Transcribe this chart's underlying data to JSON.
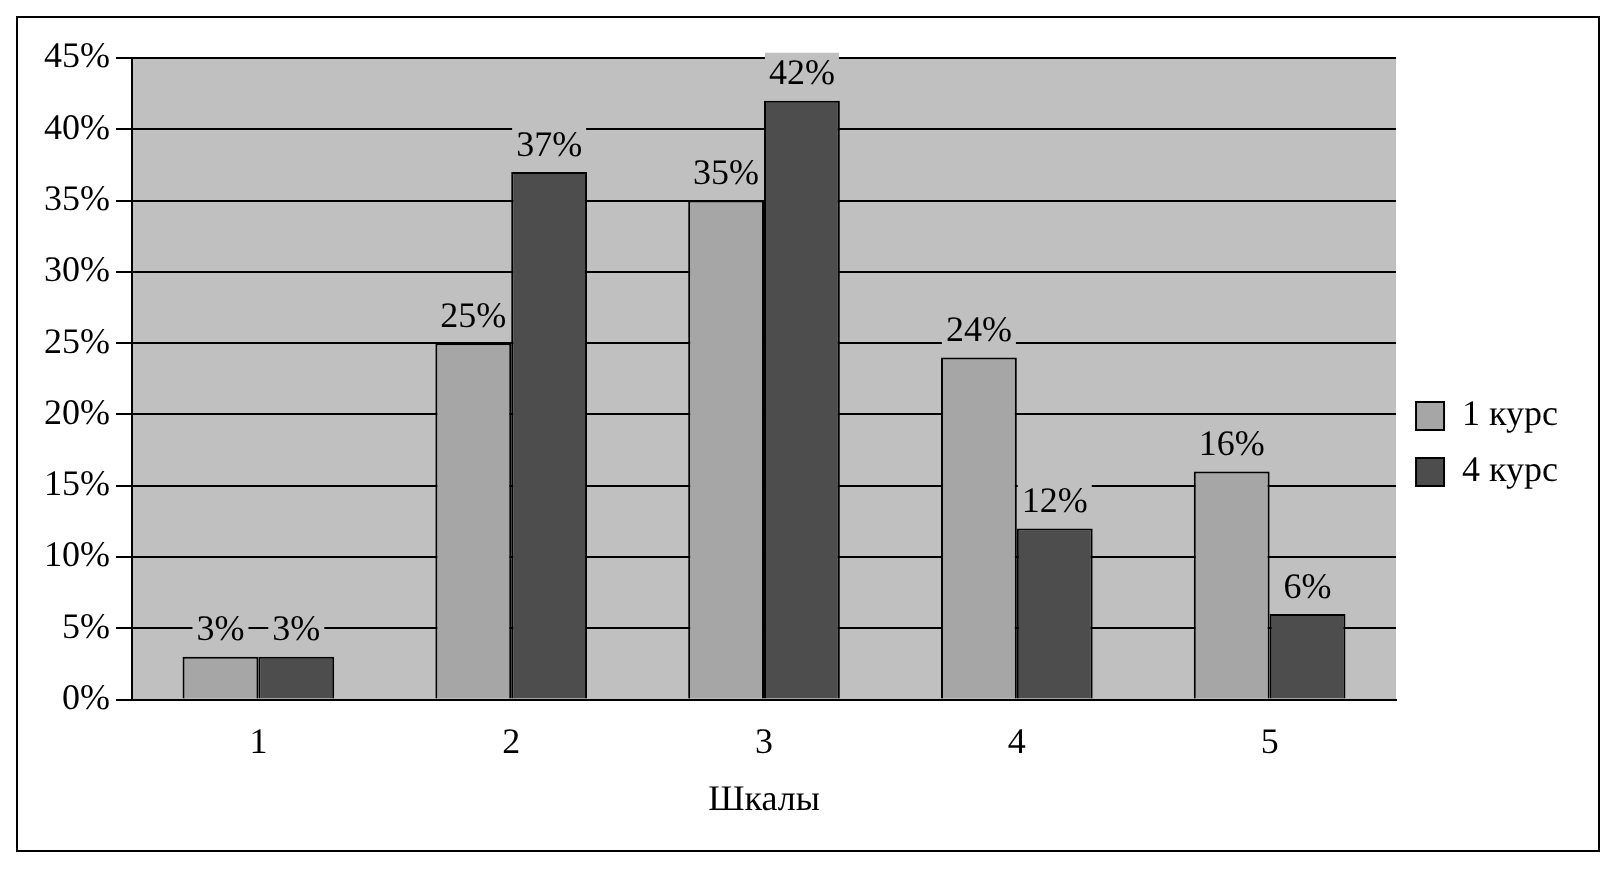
{
  "chart_data": {
    "type": "bar",
    "xlabel": "Шкалы",
    "categories": [
      "1",
      "2",
      "3",
      "4",
      "5"
    ],
    "series": [
      {
        "name": "1 курс",
        "color": "#a6a6a6",
        "values": [
          3,
          25,
          35,
          24,
          16
        ],
        "value_labels": [
          "3%",
          "25%",
          "35%",
          "24%",
          "16%"
        ]
      },
      {
        "name": "4 курс",
        "color": "#4d4d4d",
        "values": [
          3,
          37,
          42,
          12,
          6
        ],
        "value_labels": [
          "3%",
          "37%",
          "42%",
          "12%",
          "6%"
        ]
      }
    ],
    "ylim": [
      0,
      45
    ],
    "yticks": [
      {
        "value": 0,
        "label": "0%"
      },
      {
        "value": 5,
        "label": "5%"
      },
      {
        "value": 10,
        "label": "10%"
      },
      {
        "value": 15,
        "label": "15%"
      },
      {
        "value": 20,
        "label": "20%"
      },
      {
        "value": 25,
        "label": "25%"
      },
      {
        "value": 30,
        "label": "30%"
      },
      {
        "value": 35,
        "label": "35%"
      },
      {
        "value": 40,
        "label": "40%"
      },
      {
        "value": 45,
        "label": "45%"
      }
    ],
    "grid": "y",
    "legend": "right"
  }
}
